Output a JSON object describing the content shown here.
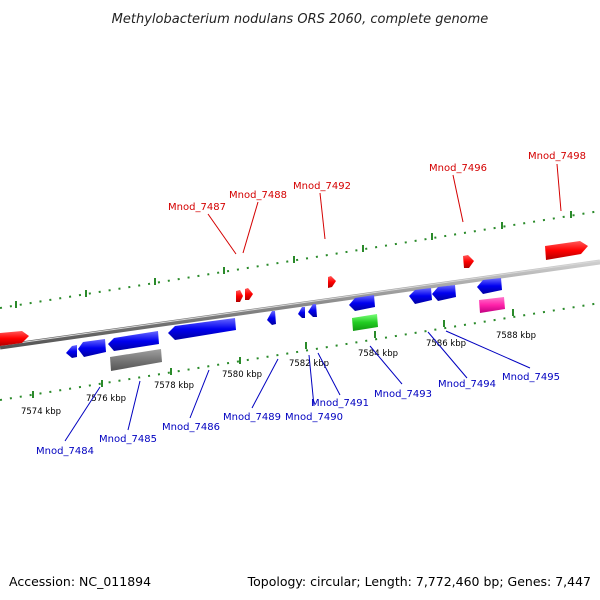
{
  "title": "Methylobacterium nodulans ORS 2060, complete genome",
  "footer": {
    "accession": "Accession: NC_011894",
    "summary": "Topology: circular; Length: 7,772,460 bp; Genes: 7,447"
  },
  "colors": {
    "forward_label": "#d40000",
    "reverse_label": "#0000c0",
    "scale": "#2a8a2a",
    "backbone": "#888888"
  },
  "scale_labels": [
    "7574 kbp",
    "7576 kbp",
    "7578 kbp",
    "7580 kbp",
    "7582 kbp",
    "7584 kbp",
    "7586 kbp",
    "7588 kbp"
  ],
  "forward_genes": [
    "Mnod_7487",
    "Mnod_7488",
    "Mnod_7492",
    "Mnod_7496",
    "Mnod_7498"
  ],
  "reverse_genes": [
    "Mnod_7484",
    "Mnod_7485",
    "Mnod_7486",
    "Mnod_7489",
    "Mnod_7490",
    "Mnod_7491",
    "Mnod_7493",
    "Mnod_7494",
    "Mnod_7495"
  ]
}
